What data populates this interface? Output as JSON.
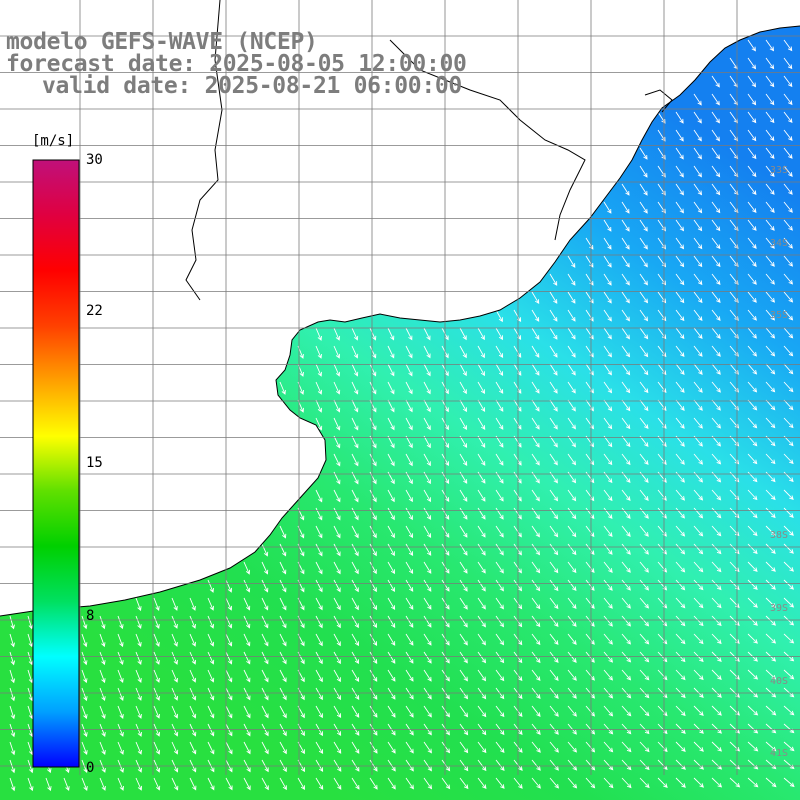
{
  "title": {
    "model": "modelo GEFS-WAVE (NCEP)",
    "forecast": "forecast date: 2025-08-05 12:00:00",
    "valid": "valid date: 2025-08-21 06:00:00"
  },
  "colorbar": {
    "unit": "[m/s]",
    "min": 0,
    "max": 30,
    "tick_labels": [
      "30",
      "22",
      "15",
      "8",
      "0"
    ],
    "tick_values": [
      30,
      22,
      15,
      8,
      0
    ],
    "colors": [
      "#0000ff",
      "#00a0ff",
      "#00ffff",
      "#00e060",
      "#00d000",
      "#60e000",
      "#ffff00",
      "#ffa000",
      "#ff4000",
      "#ff0000",
      "#e00040",
      "#c0107a"
    ]
  },
  "latitude_labels": [
    "33S",
    "34S",
    "35S",
    "38S",
    "39S",
    "40S",
    "41S"
  ],
  "field": {
    "quantity": "wind speed",
    "ocean_color_north_east": "#1a8cf0",
    "ocean_color_south": "#20e050",
    "arrow_color": "#ffffff",
    "coast_color": "#000000"
  }
}
